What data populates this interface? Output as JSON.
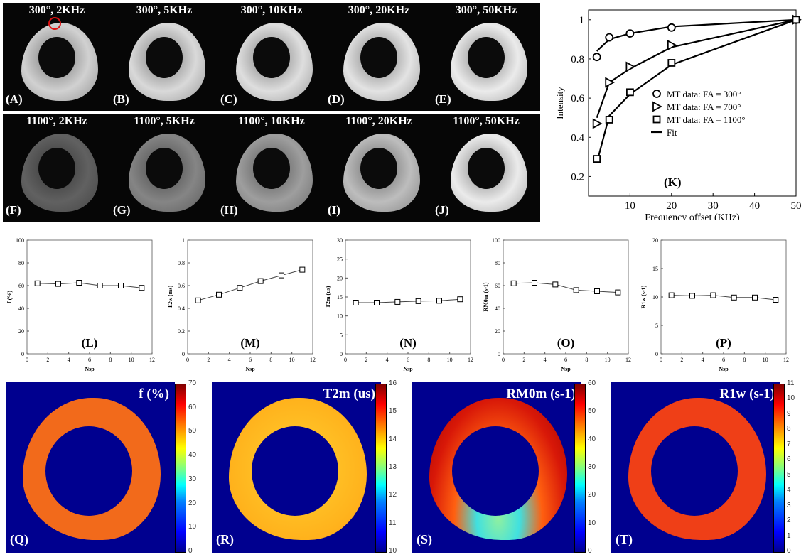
{
  "mri_rows": [
    {
      "panels": [
        {
          "title": "300°, 2KHz",
          "label": "(A)",
          "brightness": 0.82
        },
        {
          "title": "300°, 5KHz",
          "label": "(B)",
          "brightness": 0.85
        },
        {
          "title": "300°, 10KHz",
          "label": "(C)",
          "brightness": 0.87
        },
        {
          "title": "300°, 20KHz",
          "label": "(D)",
          "brightness": 0.89
        },
        {
          "title": "300°, 50KHz",
          "label": "(E)",
          "brightness": 0.92
        }
      ]
    },
    {
      "panels": [
        {
          "title": "1100°, 2KHz",
          "label": "(F)",
          "brightness": 0.38
        },
        {
          "title": "1100°, 5KHz",
          "label": "(G)",
          "brightness": 0.52
        },
        {
          "title": "1100°, 10KHz",
          "label": "(H)",
          "brightness": 0.62
        },
        {
          "title": "1100°, 20KHz",
          "label": "(I)",
          "brightness": 0.74
        },
        {
          "title": "1100°, 50KHz",
          "label": "(J)",
          "brightness": 0.92
        }
      ]
    }
  ],
  "chart_data": [
    {
      "id": "K",
      "type": "scatter",
      "label": "(K)",
      "xlabel": "Frequency offset (KHz)",
      "ylabel": "Intensity",
      "xlim": [
        0,
        50
      ],
      "ylim": [
        0.1,
        1.05
      ],
      "xticks": [
        10,
        20,
        30,
        40,
        50
      ],
      "yticks": [
        0.2,
        0.4,
        0.6,
        0.8,
        1
      ],
      "legend_position": "right",
      "series": [
        {
          "name": "MT data: FA = 300°",
          "marker": "circle",
          "x": [
            2,
            5,
            10,
            20,
            50
          ],
          "y": [
            0.81,
            0.91,
            0.93,
            0.96,
            1.0
          ],
          "fit": [
            [
              2,
              0.84
            ],
            [
              5,
              0.9
            ],
            [
              10,
              0.93
            ],
            [
              20,
              0.965
            ],
            [
              50,
              1.0
            ]
          ]
        },
        {
          "name": "MT data: FA = 700°",
          "marker": "triangle",
          "x": [
            2,
            5,
            10,
            20,
            50
          ],
          "y": [
            0.47,
            0.68,
            0.76,
            0.87,
            1.0
          ],
          "fit": [
            [
              2,
              0.5
            ],
            [
              5,
              0.68
            ],
            [
              10,
              0.75
            ],
            [
              20,
              0.86
            ],
            [
              50,
              1.0
            ]
          ]
        },
        {
          "name": "MT data: FA = 1100°",
          "marker": "square",
          "x": [
            2,
            5,
            10,
            20,
            50
          ],
          "y": [
            0.29,
            0.49,
            0.63,
            0.78,
            1.0
          ],
          "fit": [
            [
              2,
              0.27
            ],
            [
              5,
              0.51
            ],
            [
              10,
              0.62
            ],
            [
              20,
              0.77
            ],
            [
              50,
              1.0
            ]
          ]
        }
      ],
      "fit_legend": "Fit"
    },
    {
      "id": "L",
      "type": "line",
      "label": "(L)",
      "xlabel": "Nsp",
      "ylabel": "f (%)",
      "xlim": [
        0,
        12
      ],
      "ylim": [
        0,
        100
      ],
      "xticks": [
        0,
        2,
        4,
        6,
        8,
        10,
        12
      ],
      "yticks": [
        0,
        20,
        40,
        60,
        80,
        100
      ],
      "x": [
        1,
        3,
        5,
        7,
        9,
        11
      ],
      "y": [
        62,
        61.5,
        62.5,
        60,
        60,
        58
      ]
    },
    {
      "id": "M",
      "type": "line",
      "label": "(M)",
      "xlabel": "Nsp",
      "ylabel": "T2w (ms)",
      "xlim": [
        0,
        12
      ],
      "ylim": [
        0,
        1
      ],
      "xticks": [
        0,
        2,
        4,
        6,
        8,
        10,
        12
      ],
      "yticks": [
        0,
        0.2,
        0.4,
        0.6,
        0.8,
        1
      ],
      "x": [
        1,
        3,
        5,
        7,
        9,
        11
      ],
      "y": [
        0.47,
        0.52,
        0.58,
        0.64,
        0.69,
        0.74
      ]
    },
    {
      "id": "N",
      "type": "line",
      "label": "(N)",
      "xlabel": "Nsp",
      "ylabel": "T2m (us)",
      "xlim": [
        0,
        12
      ],
      "ylim": [
        0,
        30
      ],
      "xticks": [
        0,
        2,
        4,
        6,
        8,
        10,
        12
      ],
      "yticks": [
        0,
        5,
        10,
        15,
        20,
        25,
        30
      ],
      "x": [
        1,
        3,
        5,
        7,
        9,
        11
      ],
      "y": [
        13.5,
        13.5,
        13.7,
        13.9,
        14.0,
        14.4
      ]
    },
    {
      "id": "O",
      "type": "line",
      "label": "(O)",
      "xlabel": "Nsp",
      "ylabel": "RM0m (s-1)",
      "xlim": [
        0,
        12
      ],
      "ylim": [
        0,
        100
      ],
      "xticks": [
        0,
        2,
        4,
        6,
        8,
        10,
        12
      ],
      "yticks": [
        0,
        20,
        40,
        60,
        80,
        100
      ],
      "x": [
        1,
        3,
        5,
        7,
        9,
        11
      ],
      "y": [
        62,
        62.5,
        61,
        56,
        55,
        54
      ]
    },
    {
      "id": "P",
      "type": "line",
      "label": "(P)",
      "xlabel": "Nsp",
      "ylabel": "R1w (s-1)",
      "xlim": [
        0,
        12
      ],
      "ylim": [
        0,
        20
      ],
      "xticks": [
        0,
        2,
        4,
        6,
        8,
        10,
        12
      ],
      "yticks": [
        0,
        5,
        10,
        15,
        20
      ],
      "x": [
        1,
        3,
        5,
        7,
        9,
        11
      ],
      "y": [
        10.3,
        10.2,
        10.3,
        9.9,
        9.9,
        9.5
      ]
    }
  ],
  "maps": [
    {
      "title": "f (%)",
      "label": "(Q)",
      "ring_color": "#f26a1b",
      "cbar_ticks": [
        "70",
        "60",
        "50",
        "40",
        "30",
        "20",
        "10",
        "0"
      ]
    },
    {
      "title": "T2m (us)",
      "label": "(R)",
      "ring_color": "#ffb21c",
      "cbar_ticks": [
        "16",
        "15",
        "14",
        "13",
        "12",
        "11",
        "10"
      ]
    },
    {
      "title": "RM0m (s-1)",
      "label": "(S)",
      "ring_color": "#e32a12",
      "cbar_ticks": [
        "60",
        "50",
        "40",
        "30",
        "20",
        "10",
        "0"
      ]
    },
    {
      "title": "R1w (s-1)",
      "label": "(T)",
      "ring_color": "#ef3f17",
      "cbar_ticks": [
        "11",
        "10",
        "9",
        "8",
        "7",
        "6",
        "5",
        "4",
        "3",
        "2",
        "1",
        "0"
      ]
    }
  ]
}
